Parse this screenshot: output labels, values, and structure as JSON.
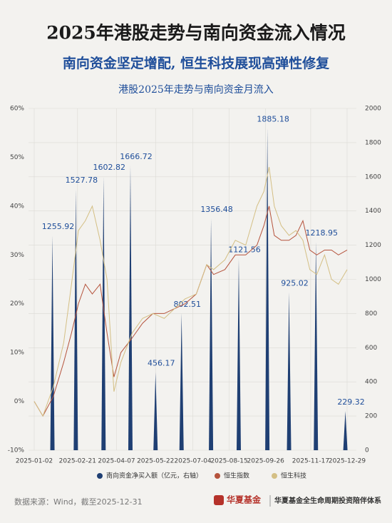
{
  "header": {
    "title": "2025年港股走势与南向资金流入情况",
    "subtitle": "南向资金坚定增配, 恒生科技展现高弹性修复"
  },
  "chart_data": {
    "type": "bar-line",
    "title": "港股2025年走势与南向资金月流入",
    "xlim": [
      "2025-01-02",
      "2025-12-29"
    ],
    "xticks": [
      "2025-01-02",
      "2025-02-21",
      "2025-04-07",
      "2025-05-22",
      "2025-07-04",
      "2025-08-15",
      "2025-09-26",
      "2025-11-17",
      "2025-12-29"
    ],
    "ylim": [
      -10,
      60
    ],
    "yticks": [
      {
        "value": -10,
        "label": "-10%"
      },
      {
        "value": 0,
        "label": "0%"
      },
      {
        "value": 10,
        "label": "10%"
      },
      {
        "value": 20,
        "label": "20%"
      },
      {
        "value": 30,
        "label": "30%"
      },
      {
        "value": 40,
        "label": "40%"
      },
      {
        "value": 50,
        "label": "50%"
      },
      {
        "value": 60,
        "label": "60%"
      }
    ],
    "y2lim": [
      0,
      2000
    ],
    "y2ticks": [
      0,
      200,
      400,
      600,
      800,
      1000,
      1200,
      1400,
      1600,
      1800,
      2000
    ],
    "grid": true,
    "bar_series": {
      "name": "南向资金净买入额（亿元，右轴）",
      "color": "#1f3f73",
      "axis": "y2",
      "x": [
        "2025-01-23",
        "2025-02-19",
        "2025-03-23",
        "2025-04-23",
        "2025-05-22",
        "2025-06-21",
        "2025-07-25",
        "2025-08-26",
        "2025-09-28",
        "2025-10-23",
        "2025-11-23",
        "2025-12-27"
      ],
      "values": [
        1255.92,
        1527.78,
        1602.82,
        1666.72,
        456.17,
        802.51,
        1356.48,
        1121.56,
        1885.18,
        925.02,
        1218.95,
        229.32
      ]
    },
    "x": [
      "2025-01-02",
      "2025-01-12",
      "2025-01-24",
      "2025-02-05",
      "2025-02-14",
      "2025-02-22",
      "2025-03-02",
      "2025-03-10",
      "2025-03-19",
      "2025-03-27",
      "2025-04-04",
      "2025-04-12",
      "2025-04-25",
      "2025-05-07",
      "2025-05-19",
      "2025-06-01",
      "2025-06-13",
      "2025-06-25",
      "2025-07-08",
      "2025-07-20",
      "2025-07-28",
      "2025-08-10",
      "2025-08-22",
      "2025-09-03",
      "2025-09-16",
      "2025-09-24",
      "2025-09-30",
      "2025-10-06",
      "2025-10-14",
      "2025-10-23",
      "2025-10-31",
      "2025-11-08",
      "2025-11-16",
      "2025-11-24",
      "2025-12-03",
      "2025-12-11",
      "2025-12-19",
      "2025-12-29"
    ],
    "series": [
      {
        "name": "恒生指数",
        "color": "#b5533c",
        "values": [
          0,
          -3,
          1,
          8,
          14,
          20,
          24,
          22,
          24,
          14,
          5,
          10,
          13,
          16,
          18,
          18,
          19,
          20,
          22,
          28,
          26,
          27,
          30,
          30,
          32,
          36,
          40,
          34,
          33,
          33,
          34,
          37,
          31,
          30,
          31,
          31,
          30,
          31
        ]
      },
      {
        "name": "恒生科技",
        "color": "#d4bf84",
        "values": [
          0,
          -3,
          3,
          12,
          24,
          35,
          37,
          40,
          33,
          25,
          2,
          8,
          14,
          17,
          18,
          17,
          19,
          21,
          22,
          28,
          27,
          29,
          33,
          32,
          40,
          43,
          48,
          40,
          36,
          34,
          35,
          33,
          27,
          26,
          30,
          25,
          24,
          27
        ]
      }
    ]
  },
  "footer": {
    "source": "数据来源：Wind，截至2025-12-31",
    "logo": "华夏基金",
    "slogan": "华夏基金全生命周期投资陪伴体系"
  }
}
